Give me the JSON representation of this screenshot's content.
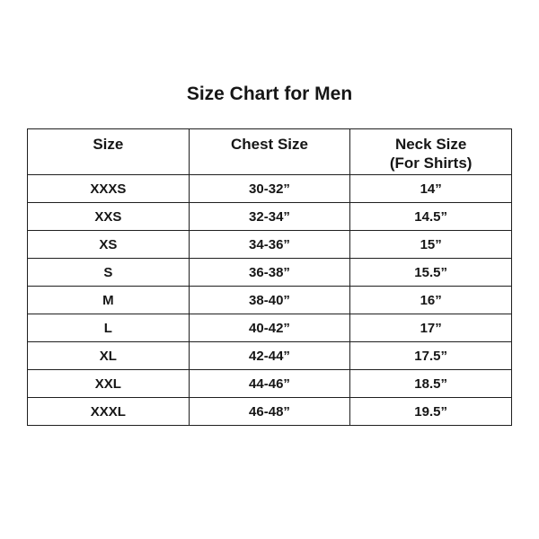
{
  "title": "Size Chart for Men",
  "table": {
    "headers": [
      "Size",
      "Chest Size",
      "Neck Size\n(For Shirts)"
    ],
    "rows": [
      {
        "size": "XXXS",
        "chest": "30-32”",
        "neck": "14”"
      },
      {
        "size": "XXS",
        "chest": "32-34”",
        "neck": "14.5”"
      },
      {
        "size": "XS",
        "chest": "34-36”",
        "neck": "15”"
      },
      {
        "size": "S",
        "chest": "36-38”",
        "neck": "15.5”"
      },
      {
        "size": "M",
        "chest": "38-40”",
        "neck": "16”"
      },
      {
        "size": "L",
        "chest": "40-42”",
        "neck": "17”"
      },
      {
        "size": "XL",
        "chest": "42-44”",
        "neck": "17.5”"
      },
      {
        "size": "XXL",
        "chest": "44-46”",
        "neck": "18.5”"
      },
      {
        "size": "XXXL",
        "chest": "46-48”",
        "neck": "19.5”"
      }
    ]
  },
  "chart_data": {
    "type": "table",
    "title": "Size Chart for Men",
    "columns": [
      "Size",
      "Chest Size",
      "Neck Size (For Shirts)"
    ],
    "rows": [
      [
        "XXXS",
        "30-32”",
        "14”"
      ],
      [
        "XXS",
        "32-34”",
        "14.5”"
      ],
      [
        "XS",
        "34-36”",
        "15”"
      ],
      [
        "S",
        "36-38”",
        "15.5”"
      ],
      [
        "M",
        "38-40”",
        "16”"
      ],
      [
        "L",
        "40-42”",
        "17”"
      ],
      [
        "XL",
        "42-44”",
        "17.5”"
      ],
      [
        "XXL",
        "44-46”",
        "18.5”"
      ],
      [
        "XXXL",
        "46-48”",
        "19.5”"
      ]
    ]
  }
}
